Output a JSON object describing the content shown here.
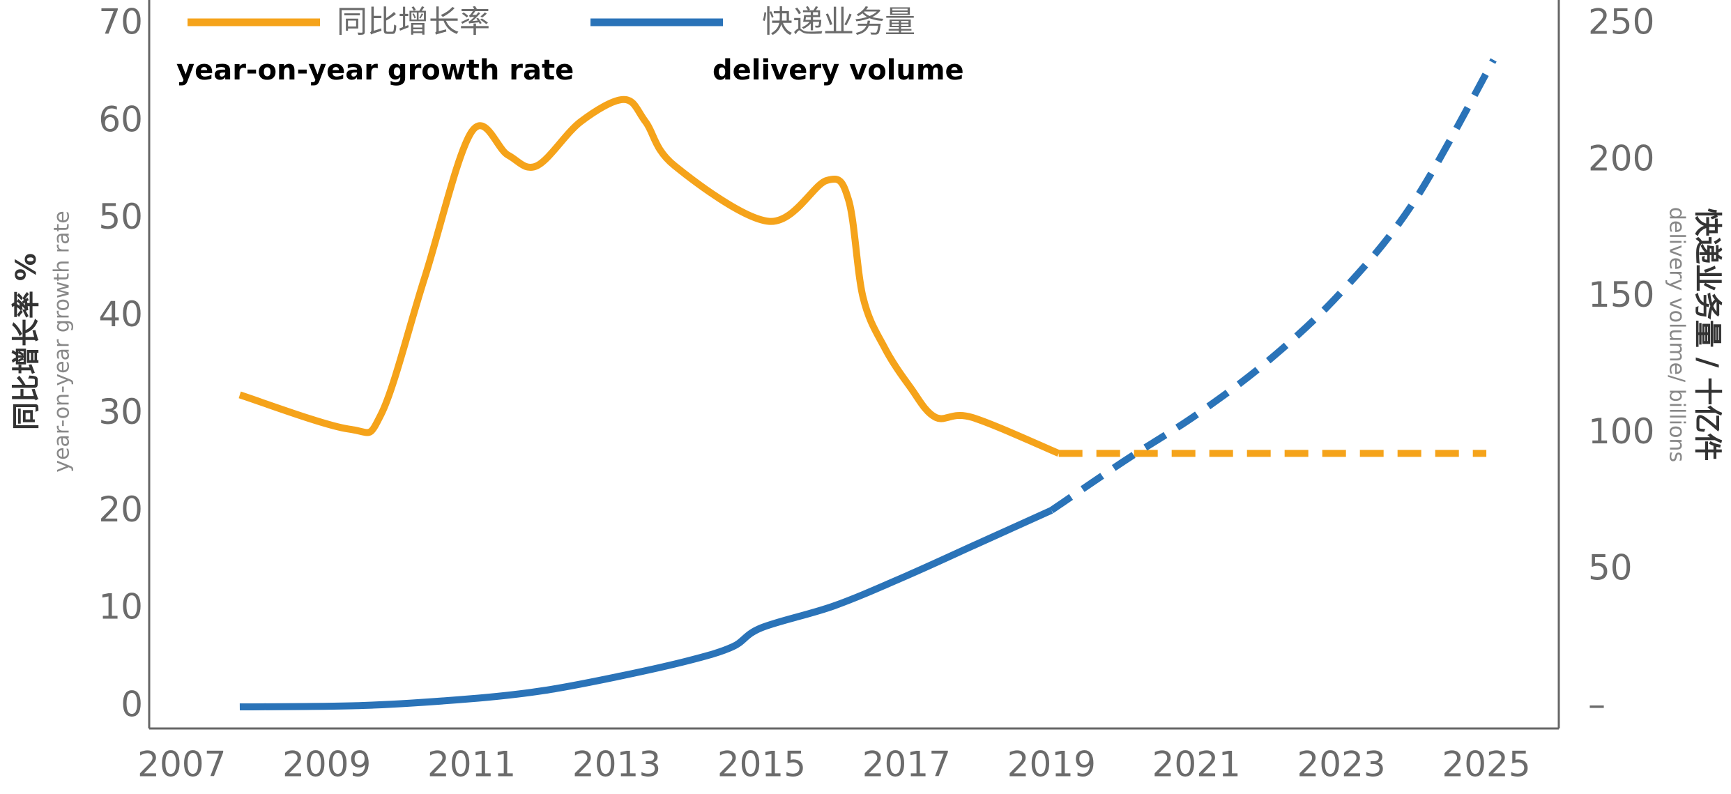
{
  "chart_data": {
    "type": "line",
    "xlim": [
      2006.55,
      2026.0
    ],
    "xticks": [
      2007,
      2009,
      2011,
      2013,
      2015,
      2017,
      2019,
      2021,
      2023,
      2025
    ],
    "ylim": [
      0,
      70
    ],
    "yticks": [
      0,
      10,
      20,
      30,
      40,
      50,
      60,
      70
    ],
    "y2lim": [
      0,
      250
    ],
    "y2ticks": [
      {
        "value": 0,
        "label": "–"
      },
      50,
      100,
      150,
      200,
      250
    ],
    "ylabel": "同比增长率 %",
    "ylabel_en": "year-on-year growth rate",
    "y2label": "快递业务量 / 十亿件",
    "y2label_en": "delivery volume/ billions",
    "grid": false,
    "series": [
      {
        "name": "同比增长率",
        "name_en": "year-on-year growth rate",
        "color": "#f5a31a",
        "axis": "y",
        "x": [
          2007.8,
          2009.3,
          2009.75,
          2010.35,
          2011.0,
          2011.5,
          2011.9,
          2012.5,
          2013.1,
          2013.4,
          2013.8,
          2015.1,
          2015.9,
          2016.2,
          2016.4,
          2016.7,
          2017.05,
          2017.4,
          2017.9,
          2019.1
        ],
        "values": [
          32,
          28.5,
          30,
          44,
          59,
          56.6,
          55.5,
          60,
          62.3,
          60,
          55.5,
          49.8,
          54,
          52,
          42,
          36.8,
          32.8,
          29.7,
          29.7,
          26
        ],
        "projection_x": [
          2019.1,
          2025.0
        ],
        "projection_values": [
          26,
          26
        ]
      },
      {
        "name": "快递业务量",
        "name_en": "delivery volume",
        "color": "#2a73b8",
        "axis": "y2",
        "x": [
          2007.8,
          2009.5,
          2011.0,
          2012.0,
          2013.0,
          2014.0,
          2014.6,
          2015.0,
          2016.0,
          2017.0,
          2018.0,
          2019.0
        ],
        "values": [
          0,
          0.5,
          3,
          6,
          11,
          17,
          22,
          29,
          37,
          48,
          60,
          72
        ],
        "projection_x": [
          2019.0,
          2020.0,
          2021.0,
          2022.0,
          2023.0,
          2024.0,
          2025.1
        ],
        "projection_values": [
          72,
          90,
          107,
          127,
          152,
          185,
          237
        ]
      }
    ]
  }
}
